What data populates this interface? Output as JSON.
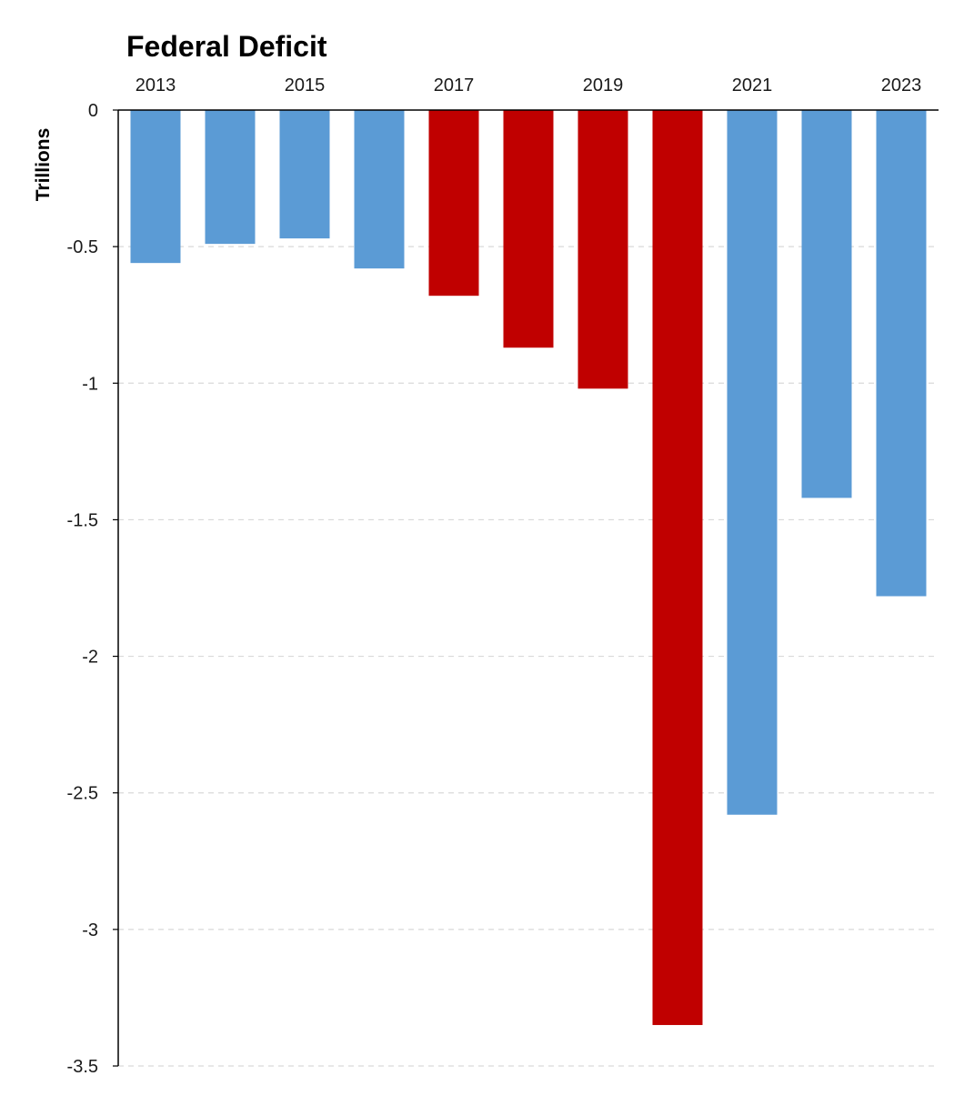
{
  "chart_data": {
    "type": "bar",
    "title": "Federal Deficit",
    "xlabel": "",
    "ylabel": "Trillions",
    "categories": [
      "2013",
      "2014",
      "2015",
      "2016",
      "2017",
      "2018",
      "2019",
      "2020",
      "2021",
      "2022",
      "2023"
    ],
    "x_tick_labels": [
      "2013",
      "",
      "2015",
      "",
      "2017",
      "",
      "2019",
      "",
      "2021",
      "",
      "2023"
    ],
    "values": [
      -0.56,
      -0.49,
      -0.47,
      -0.58,
      -0.68,
      -0.87,
      -1.02,
      -3.35,
      -2.58,
      -1.42,
      -1.78
    ],
    "bar_colors": [
      "#5b9bd5",
      "#5b9bd5",
      "#5b9bd5",
      "#5b9bd5",
      "#c00000",
      "#c00000",
      "#c00000",
      "#c00000",
      "#5b9bd5",
      "#5b9bd5",
      "#5b9bd5"
    ],
    "ylim": [
      -3.5,
      0
    ],
    "y_ticks": [
      0,
      -0.5,
      -1,
      -1.5,
      -2,
      -2.5,
      -3,
      -3.5
    ],
    "y_tick_labels": [
      "0",
      "-0.5",
      "-1",
      "-1.5",
      "-2",
      "-2.5",
      "-3",
      "-3.5"
    ],
    "x_axis_position": "top",
    "grid": true,
    "grid_color": "#d9d9d9",
    "axis_color": "#000000"
  }
}
